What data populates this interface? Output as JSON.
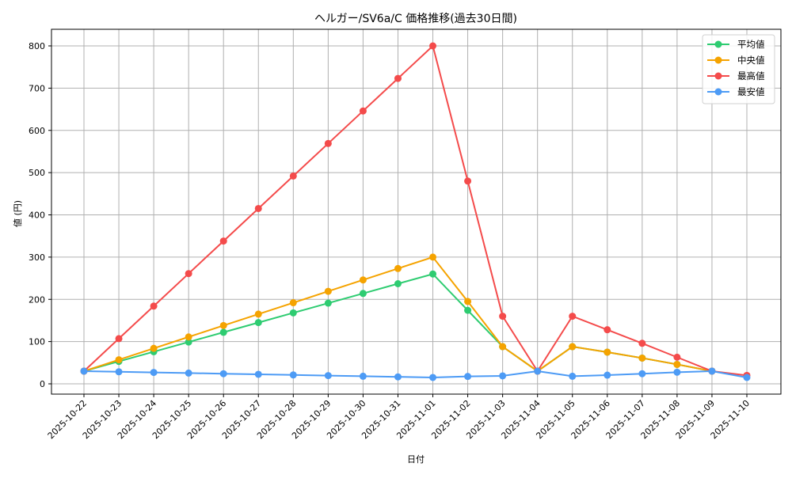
{
  "chart_data": {
    "type": "line",
    "title": "ヘルガー/SV6a/C 価格推移(過去30日間)",
    "xlabel": "日付",
    "ylabel": "値 (円)",
    "ylim": [
      -25,
      840
    ],
    "yticks": [
      0,
      100,
      200,
      300,
      400,
      500,
      600,
      700,
      800
    ],
    "grid": true,
    "legend_position": "upper right",
    "categories": [
      "2025-10-22",
      "2025-10-23",
      "2025-10-24",
      "2025-10-25",
      "2025-10-26",
      "2025-10-27",
      "2025-10-28",
      "2025-10-29",
      "2025-10-30",
      "2025-10-31",
      "2025-11-01",
      "2025-11-02",
      "2025-11-03",
      "2025-11-04",
      "2025-11-05",
      "2025-11-06",
      "2025-11-07",
      "2025-11-08",
      "2025-11-09",
      "2025-11-10"
    ],
    "series": [
      {
        "name": "平均値",
        "color": "#2ecc71",
        "values": [
          30,
          53,
          76,
          99,
          122,
          145,
          168,
          191,
          214,
          237,
          260,
          174,
          88,
          30,
          88,
          75,
          61,
          46,
          30,
          null
        ]
      },
      {
        "name": "中央値",
        "color": "#f5a300",
        "values": [
          30,
          57,
          84,
          111,
          138,
          165,
          192,
          219,
          246,
          273,
          300,
          195,
          88,
          30,
          88,
          75,
          61,
          46,
          30,
          null
        ]
      },
      {
        "name": "最高値",
        "color": "#f44b4b",
        "values": [
          30,
          107,
          184,
          261,
          338,
          415,
          492,
          569,
          646,
          723,
          800,
          480,
          160,
          30,
          160,
          128,
          96,
          63,
          30,
          20
        ]
      },
      {
        "name": "最安値",
        "color": "#4d9bf5",
        "values": [
          30,
          28.5,
          27,
          25.5,
          24,
          22.5,
          21,
          19.5,
          18,
          16.5,
          15,
          17.5,
          18.8,
          30,
          18,
          20.5,
          24,
          27.5,
          30,
          15
        ]
      }
    ]
  }
}
